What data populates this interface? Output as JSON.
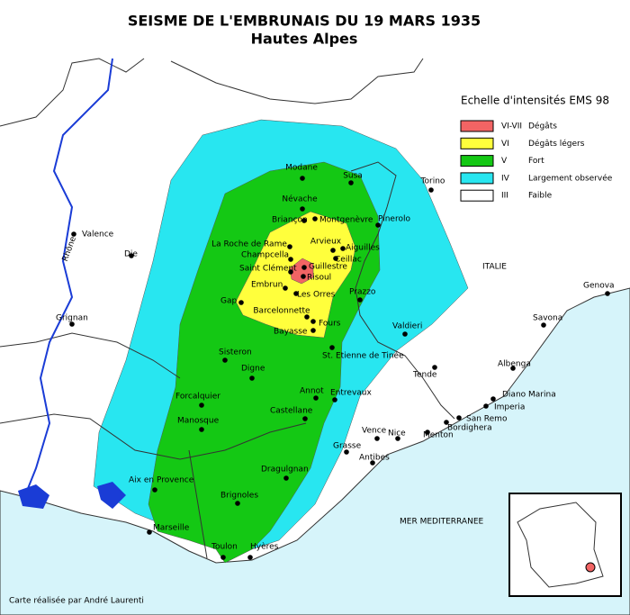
{
  "title": "SEISME DE L'EMBRUNAIS DU 19 MARS 1935",
  "subtitle": "Hautes Alpes",
  "legend": {
    "title": "Echelle d'intensités EMS 98",
    "items": [
      {
        "level": "VI-VII",
        "label": "Dégâts",
        "color": "#f26464"
      },
      {
        "level": "VI",
        "label": "Dégâts légers",
        "color": "#ffff3c"
      },
      {
        "level": "V",
        "label": "Fort",
        "color": "#14c814"
      },
      {
        "level": "IV",
        "label": "Largement observée",
        "color": "#28e6f0"
      },
      {
        "level": "III",
        "label": "Faible",
        "color": "#ffffff"
      }
    ]
  },
  "places": [
    {
      "name": "Modane"
    },
    {
      "name": "Susa"
    },
    {
      "name": "Torino"
    },
    {
      "name": "Névache"
    },
    {
      "name": "Briançon"
    },
    {
      "name": "Montgenèvre"
    },
    {
      "name": "Pinerolo"
    },
    {
      "name": "La Roche de Rame"
    },
    {
      "name": "Arvieux"
    },
    {
      "name": "Aiguilles"
    },
    {
      "name": "Champcella"
    },
    {
      "name": "Ceillac"
    },
    {
      "name": "Guillestre"
    },
    {
      "name": "Saint Clément"
    },
    {
      "name": "Risoul"
    },
    {
      "name": "Embrun"
    },
    {
      "name": "Les Orres"
    },
    {
      "name": "Gap"
    },
    {
      "name": "Prazzo"
    },
    {
      "name": "Barcelonnette"
    },
    {
      "name": "Fours"
    },
    {
      "name": "Bayasse"
    },
    {
      "name": "Valence"
    },
    {
      "name": "Die"
    },
    {
      "name": "Grignan"
    },
    {
      "name": "Genova"
    },
    {
      "name": "Savona"
    },
    {
      "name": "Valdieri"
    },
    {
      "name": "Sisteron"
    },
    {
      "name": "St. Etienne de Tinée"
    },
    {
      "name": "Albenga"
    },
    {
      "name": "Digne"
    },
    {
      "name": "Tende"
    },
    {
      "name": "Forcalquier"
    },
    {
      "name": "Annot"
    },
    {
      "name": "Entrevaux"
    },
    {
      "name": "Diano Marina"
    },
    {
      "name": "Imperia"
    },
    {
      "name": "Castellane"
    },
    {
      "name": "San Remo"
    },
    {
      "name": "Bordighera"
    },
    {
      "name": "Manosque"
    },
    {
      "name": "Vence"
    },
    {
      "name": "Nice"
    },
    {
      "name": "Menton"
    },
    {
      "name": "Grasse"
    },
    {
      "name": "Antibes"
    },
    {
      "name": "Dragulgnan"
    },
    {
      "name": "Aix en Provence"
    },
    {
      "name": "Brignoles"
    },
    {
      "name": "Marseille"
    },
    {
      "name": "Toulon"
    },
    {
      "name": "Hyères"
    }
  ],
  "labels": {
    "country": "ITALIE",
    "sea": "MER MEDITERRANEE",
    "river": "Rhône"
  },
  "credit": "Carte réalisée par André Laurenti"
}
